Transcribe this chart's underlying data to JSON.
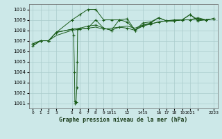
{
  "bg_color": "#cce8e8",
  "grid_color": "#aacccc",
  "line_color": "#1a5c1a",
  "marker_color": "#1a5c1a",
  "title": "Graphe pression niveau de la mer (hPa)",
  "xlim": [
    -0.5,
    23.5
  ],
  "ylim": [
    1000.5,
    1010.5
  ],
  "yticks": [
    1001,
    1002,
    1003,
    1004,
    1005,
    1006,
    1007,
    1008,
    1009,
    1010
  ],
  "xtick_positions": [
    0,
    1,
    2,
    3,
    4.5,
    6,
    7,
    8,
    9,
    10.5,
    12,
    13.5,
    15,
    16,
    17,
    18,
    19,
    20.5,
    22.5
  ],
  "xtick_labels": [
    "0",
    "1",
    "2",
    "3",
    "5",
    "6",
    "7",
    "8",
    "9",
    "1011",
    "12",
    "1415",
    "16",
    "17",
    "18",
    "19",
    "20",
    "2021",
    "2223"
  ],
  "series1_dip": {
    "x": [
      0,
      1,
      2,
      3,
      5,
      5.2,
      5.3,
      5.35,
      5.4,
      5.5,
      5.6,
      5.65,
      5.7,
      6,
      7,
      8,
      9,
      10,
      11,
      12,
      13,
      14,
      15,
      16,
      17,
      18,
      19,
      20,
      21,
      22,
      23
    ],
    "y": [
      1006.7,
      1007.0,
      1007.0,
      1007.8,
      1008.1,
      1007.5,
      1004.0,
      1001.2,
      1001.0,
      1001.1,
      1002.5,
      1005.0,
      1008.1,
      1008.1,
      1008.2,
      1009.0,
      1008.2,
      1008.0,
      1009.0,
      1008.8,
      1008.0,
      1008.5,
      1008.7,
      1009.2,
      1008.9,
      1008.9,
      1009.0,
      1009.5,
      1008.9,
      1009.0,
      1009.1
    ]
  },
  "series2_high": {
    "x": [
      0,
      1,
      2,
      3,
      5,
      6,
      7,
      8,
      9,
      10,
      11,
      12,
      13,
      14,
      15,
      16,
      17,
      18,
      19,
      20,
      21,
      22,
      23
    ],
    "y": [
      1006.7,
      1007.0,
      1007.0,
      1007.8,
      1009.0,
      1009.5,
      1010.0,
      1010.0,
      1009.0,
      1009.0,
      1009.0,
      1009.1,
      1008.0,
      1008.7,
      1008.8,
      1009.2,
      1008.9,
      1009.0,
      1009.0,
      1009.5,
      1009.0,
      1009.0,
      1009.1
    ]
  },
  "series3_mid": {
    "x": [
      0,
      1,
      2,
      3,
      5,
      6,
      7,
      8,
      9,
      10,
      11,
      12,
      13,
      14,
      15,
      16,
      17,
      18,
      19,
      20,
      21,
      22,
      23
    ],
    "y": [
      1006.5,
      1007.0,
      1007.0,
      1007.8,
      1008.1,
      1008.2,
      1008.4,
      1008.5,
      1008.2,
      1008.0,
      1008.3,
      1008.2,
      1008.0,
      1008.4,
      1008.6,
      1008.8,
      1008.9,
      1008.9,
      1009.0,
      1009.0,
      1009.2,
      1009.0,
      1009.1
    ]
  },
  "series4_low": {
    "x": [
      0,
      1,
      2,
      3,
      5,
      6,
      7,
      8,
      9,
      10,
      11,
      12,
      13,
      14,
      15,
      16,
      17,
      18,
      19,
      20,
      21,
      22,
      23
    ],
    "y": [
      1006.5,
      1007.0,
      1007.0,
      1007.5,
      1008.0,
      1008.1,
      1008.2,
      1008.3,
      1008.1,
      1008.2,
      1008.3,
      1008.4,
      1008.2,
      1008.5,
      1008.6,
      1008.8,
      1008.9,
      1008.9,
      1009.0,
      1009.0,
      1009.1,
      1009.0,
      1009.1
    ]
  }
}
